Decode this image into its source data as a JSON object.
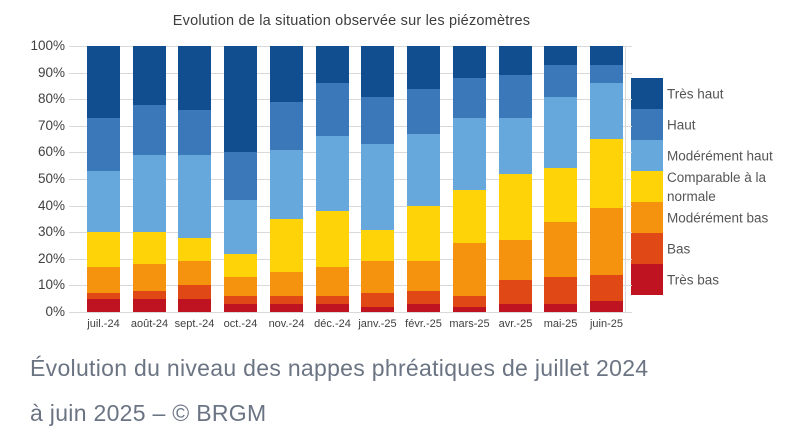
{
  "chart_data": {
    "type": "bar",
    "stacked": true,
    "units": "percent",
    "title": "Evolution de la situation observée sur les piézomètres",
    "categories": [
      "juil.-24",
      "août-24",
      "sept.-24",
      "oct.-24",
      "nov.-24",
      "déc.-24",
      "janv.-25",
      "févr.-25",
      "mars-25",
      "avr.-25",
      "mai-25",
      "juin-25"
    ],
    "stack_order": "bottom-to-top",
    "series": [
      {
        "name": "Très bas",
        "color": "#c01321",
        "values": [
          5,
          5,
          5,
          3,
          3,
          3,
          2,
          3,
          2,
          3,
          3,
          4
        ]
      },
      {
        "name": "Bas",
        "color": "#e04816",
        "values": [
          2,
          3,
          5,
          3,
          3,
          3,
          5,
          5,
          4,
          9,
          10,
          10
        ]
      },
      {
        "name": "Modérément bas",
        "color": "#f5930f",
        "values": [
          10,
          10,
          9,
          7,
          9,
          11,
          12,
          11,
          20,
          15,
          21,
          25
        ]
      },
      {
        "name": "Comparable à la normale",
        "color": "#fed308",
        "values": [
          13,
          12,
          9,
          9,
          20,
          21,
          12,
          21,
          20,
          25,
          20,
          26
        ]
      },
      {
        "name": "Modérément haut",
        "color": "#67a8dc",
        "values": [
          23,
          29,
          31,
          20,
          26,
          28,
          32,
          27,
          27,
          21,
          27,
          21
        ]
      },
      {
        "name": "Haut",
        "color": "#3b78ba",
        "values": [
          20,
          19,
          17,
          18,
          18,
          20,
          18,
          17,
          15,
          16,
          12,
          7
        ]
      },
      {
        "name": "Très haut",
        "color": "#114e8f",
        "values": [
          27,
          22,
          24,
          40,
          21,
          14,
          19,
          16,
          12,
          11,
          7,
          7
        ]
      }
    ],
    "legend_order_top_to_bottom": [
      "Très haut",
      "Haut",
      "Modérément haut",
      "Comparable à la normale",
      "Modérément bas",
      "Bas",
      "Très bas"
    ],
    "legend_position": "right",
    "ylim": [
      0,
      100
    ],
    "y_tick_labels": [
      "0%",
      "10%",
      "20%",
      "30%",
      "40%",
      "50%",
      "60%",
      "70%",
      "80%",
      "90%",
      "100%"
    ],
    "grid": true
  },
  "caption": {
    "line1": "Évolution du niveau des nappes phréatiques de juillet 2024",
    "line2": "à juin 2025 – © BRGM"
  },
  "style_colors": {
    "background": "#ffffff",
    "gridline": "#d9d9d9",
    "axis_text": "#404040",
    "title_text": "#3d3d3d",
    "legend_text": "#555555",
    "caption_text": "#6b7483"
  }
}
